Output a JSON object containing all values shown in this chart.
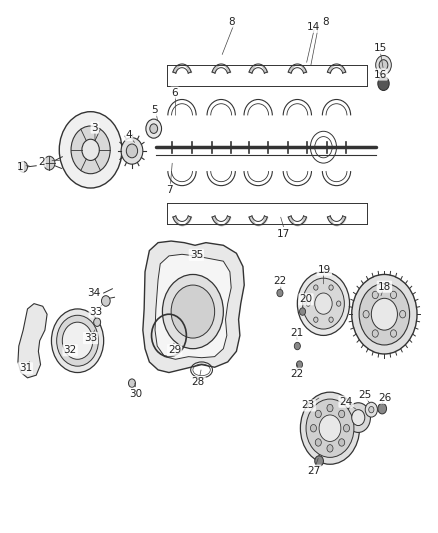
{
  "title": "",
  "background_color": "#ffffff",
  "fig_width": 4.38,
  "fig_height": 5.33,
  "dpi": 100,
  "line_color": "#333333",
  "label_fontsize": 7.5
}
